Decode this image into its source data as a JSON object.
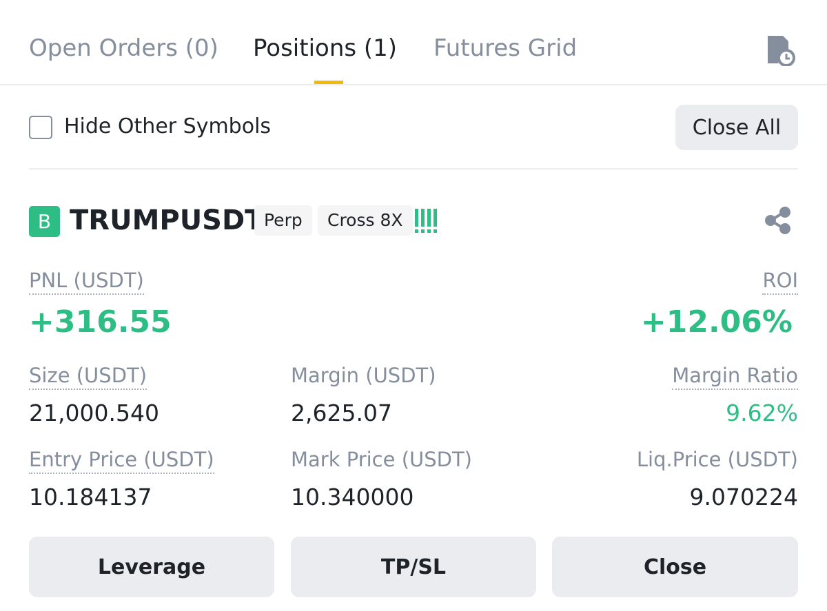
{
  "tabs": [
    "Open Orders (0)",
    "Positions (1)",
    "Futures Grid"
  ],
  "filter": {
    "checkbox_label": "Hide Other Symbols",
    "button": "Close All"
  },
  "position": {
    "badge": "B",
    "symbol": "TRUMPUSDT",
    "tags": [
      "Perp",
      "Cross 8X"
    ],
    "pnl": {
      "label": "PNL (USDT)",
      "value": "+316.55"
    },
    "roi": {
      "label": "ROI",
      "value": "+12.06%"
    },
    "fields": [
      {
        "label": "Size (USDT)",
        "value": "21,000.540"
      },
      {
        "label": "Margin (USDT)",
        "value": "2,625.07"
      },
      {
        "label": "Margin Ratio",
        "value": "9.62%"
      },
      {
        "label": "Entry Price (USDT)",
        "value": "10.184137"
      },
      {
        "label": "Mark Price (USDT)",
        "value": "10.340000"
      },
      {
        "label": "Liq.Price (USDT)",
        "value": "9.070224"
      }
    ],
    "actions": [
      "Leverage",
      "TP/SL",
      "Close"
    ]
  }
}
